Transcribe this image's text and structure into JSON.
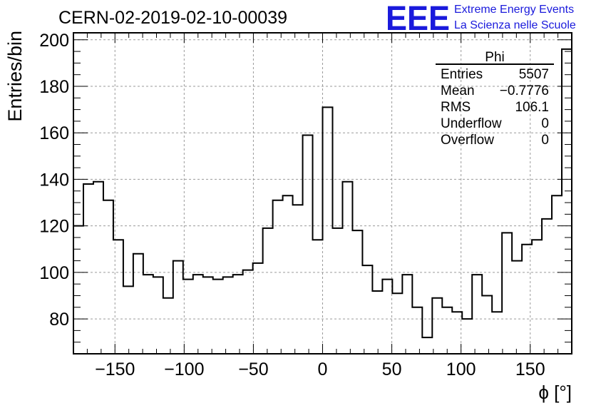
{
  "chart_data": {
    "type": "bar",
    "title": "CERN-02-2019-02-10-00039",
    "xlabel": "ϕ [°]",
    "ylabel": "Entries/bin",
    "xlim": [
      -180,
      180
    ],
    "ylim": [
      65,
      203
    ],
    "grid": true,
    "x_ticks": [
      "−150",
      "−100",
      "−50",
      "0",
      "50",
      "100",
      "150"
    ],
    "y_ticks": [
      "80",
      "100",
      "120",
      "140",
      "160",
      "180",
      "200"
    ],
    "bin_width": 7.2,
    "bin_edges_start": -180,
    "values": [
      120,
      138,
      139,
      131,
      114,
      94,
      108,
      99,
      98,
      89,
      105,
      97,
      99,
      98,
      97,
      98,
      99,
      101,
      104,
      119,
      131,
      133,
      129,
      159,
      114,
      171,
      119,
      139,
      118,
      103,
      92,
      97,
      91,
      99,
      85,
      72,
      89,
      85,
      83,
      80,
      99,
      90,
      83,
      117,
      105,
      112,
      114,
      123,
      133,
      196
    ],
    "stats_box": {
      "title": "Phi",
      "rows": [
        {
          "label": "Entries",
          "value": "5507"
        },
        {
          "label": "Mean",
          "value": "−0.7776"
        },
        {
          "label": "RMS",
          "value": "106.1"
        },
        {
          "label": "Underflow",
          "value": "0"
        },
        {
          "label": "Overflow",
          "value": "0"
        }
      ]
    }
  },
  "logo": {
    "mark": "EEE",
    "line1": "Extreme Energy Events",
    "line2": "La Scienza nelle Scuole",
    "color": "#1a1adc"
  }
}
